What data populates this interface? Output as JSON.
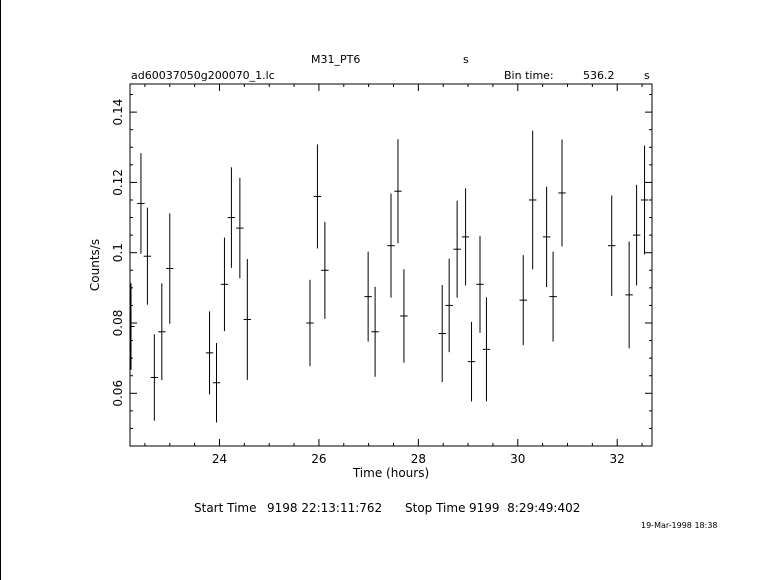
{
  "header": {
    "object": "M31_PT6",
    "s_label": "s",
    "filename": "ad60037050g200070_1.lc",
    "bin_time_label": "Bin time:",
    "bin_time_value": "536.2",
    "bin_time_unit": "s"
  },
  "footer": {
    "start_label": "Start Time",
    "start_value": "9198 22:13:11:762",
    "stop_label": "Stop Time",
    "stop_value": "9199  8:29:49:402",
    "timestamp": "19-Mar-1998 18:38"
  },
  "chart_data": {
    "type": "scatter",
    "xlabel": "Time (hours)",
    "ylabel": "Counts/s",
    "xlim": [
      22.2,
      32.7
    ],
    "ylim": [
      0.045,
      0.148
    ],
    "x_ticks": [
      24,
      26,
      28,
      30,
      32
    ],
    "y_ticks": [
      0.06,
      0.08,
      0.1,
      0.12,
      0.14
    ],
    "x_tick_labels": [
      "24",
      "26",
      "28",
      "30",
      "32"
    ],
    "y_tick_labels": [
      "0.06",
      "0.08",
      "0.1",
      "0.12",
      "0.14"
    ],
    "bin_half_width_hours": 0.0745,
    "points": [
      {
        "x": 22.22,
        "y": 0.079,
        "err": 0.0123
      },
      {
        "x": 22.42,
        "y": 0.114,
        "err": 0.0143
      },
      {
        "x": 22.55,
        "y": 0.099,
        "err": 0.0138
      },
      {
        "x": 22.69,
        "y": 0.0645,
        "err": 0.0123
      },
      {
        "x": 22.84,
        "y": 0.0775,
        "err": 0.0138
      },
      {
        "x": 23.0,
        "y": 0.0955,
        "err": 0.0157
      },
      {
        "x": 23.8,
        "y": 0.0715,
        "err": 0.0118
      },
      {
        "x": 23.94,
        "y": 0.063,
        "err": 0.0113
      },
      {
        "x": 24.1,
        "y": 0.091,
        "err": 0.0133
      },
      {
        "x": 24.24,
        "y": 0.11,
        "err": 0.0143
      },
      {
        "x": 24.41,
        "y": 0.107,
        "err": 0.0143
      },
      {
        "x": 24.56,
        "y": 0.081,
        "err": 0.0172
      },
      {
        "x": 25.82,
        "y": 0.08,
        "err": 0.0123
      },
      {
        "x": 25.97,
        "y": 0.116,
        "err": 0.0148
      },
      {
        "x": 26.12,
        "y": 0.095,
        "err": 0.0138
      },
      {
        "x": 26.99,
        "y": 0.0875,
        "err": 0.0128
      },
      {
        "x": 27.13,
        "y": 0.0775,
        "err": 0.0128
      },
      {
        "x": 27.45,
        "y": 0.102,
        "err": 0.0148
      },
      {
        "x": 27.59,
        "y": 0.1175,
        "err": 0.0148
      },
      {
        "x": 27.71,
        "y": 0.082,
        "err": 0.0133
      },
      {
        "x": 28.48,
        "y": 0.077,
        "err": 0.0138
      },
      {
        "x": 28.62,
        "y": 0.085,
        "err": 0.0133
      },
      {
        "x": 28.78,
        "y": 0.101,
        "err": 0.0138
      },
      {
        "x": 28.95,
        "y": 0.1045,
        "err": 0.0138
      },
      {
        "x": 29.07,
        "y": 0.069,
        "err": 0.0113
      },
      {
        "x": 29.24,
        "y": 0.091,
        "err": 0.0138
      },
      {
        "x": 29.37,
        "y": 0.0725,
        "err": 0.0148
      },
      {
        "x": 30.11,
        "y": 0.0865,
        "err": 0.0128
      },
      {
        "x": 30.3,
        "y": 0.115,
        "err": 0.0197
      },
      {
        "x": 30.58,
        "y": 0.1045,
        "err": 0.0143
      },
      {
        "x": 30.71,
        "y": 0.0875,
        "err": 0.0128
      },
      {
        "x": 30.89,
        "y": 0.117,
        "err": 0.0152
      },
      {
        "x": 31.89,
        "y": 0.102,
        "err": 0.0143
      },
      {
        "x": 32.24,
        "y": 0.088,
        "err": 0.0152
      },
      {
        "x": 32.39,
        "y": 0.105,
        "err": 0.0143
      },
      {
        "x": 32.55,
        "y": 0.115,
        "err": 0.0155
      }
    ]
  }
}
